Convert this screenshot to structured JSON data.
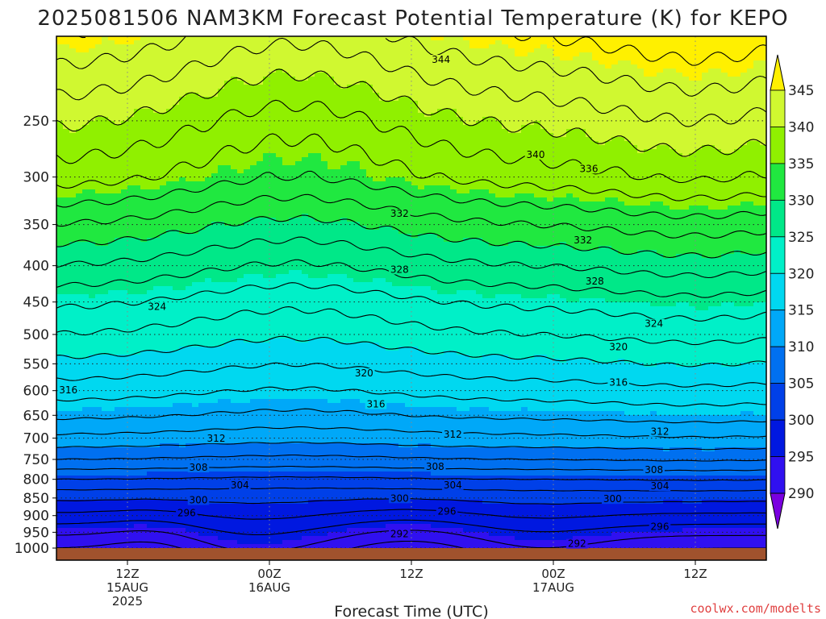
{
  "chart_data": {
    "type": "heatmap",
    "title": "2025081506 NAM3KM Forecast Potential Temperature (K) for KEPO",
    "xlabel": "Forecast Time (UTC)",
    "ylabel": "",
    "y_scale": "log",
    "y_axis_reversed": true,
    "ylim": [
      1040,
      190
    ],
    "y_ticks": [
      250,
      300,
      350,
      400,
      450,
      500,
      550,
      600,
      650,
      700,
      750,
      800,
      850,
      900,
      950,
      1000
    ],
    "x_ticks": [
      {
        "hour": 6,
        "label1": "12Z",
        "label2": "15AUG",
        "label3": "2025"
      },
      {
        "hour": 18,
        "label1": "00Z",
        "label2": "16AUG",
        "label3": ""
      },
      {
        "hour": 30,
        "label1": "12Z",
        "label2": "",
        "label3": ""
      },
      {
        "hour": 42,
        "label1": "00Z",
        "label2": "17AUG",
        "label3": ""
      },
      {
        "hour": 54,
        "label1": "12Z",
        "label2": "",
        "label3": ""
      }
    ],
    "xlim": [
      0,
      60
    ],
    "grid": true,
    "colorbar": {
      "levels": [
        290,
        295,
        300,
        305,
        310,
        315,
        320,
        325,
        330,
        335,
        340,
        345
      ],
      "colors": [
        "#7a00e0",
        "#3010f0",
        "#0018e0",
        "#0040e8",
        "#0070f0",
        "#00a8f8",
        "#00d8f0",
        "#00f0c8",
        "#00e888",
        "#20e840",
        "#90f000",
        "#d0f830",
        "#fff000"
      ]
    },
    "contour_levels": [
      288,
      290,
      292,
      294,
      296,
      298,
      300,
      302,
      304,
      306,
      308,
      310,
      312,
      314,
      316,
      318,
      320,
      322,
      324,
      326,
      328,
      330,
      332,
      334,
      336,
      338,
      340,
      342,
      344,
      346
    ],
    "contour_labels": [
      {
        "value": "344",
        "hour": 32.5,
        "p": 205
      },
      {
        "value": "340",
        "hour": 40.5,
        "p": 279
      },
      {
        "value": "336",
        "hour": 45,
        "p": 292
      },
      {
        "value": "332",
        "hour": 29,
        "p": 338
      },
      {
        "value": "332",
        "hour": 44.5,
        "p": 368
      },
      {
        "value": "328",
        "hour": 29,
        "p": 405
      },
      {
        "value": "328",
        "hour": 45.5,
        "p": 421
      },
      {
        "value": "324",
        "hour": 8.5,
        "p": 457
      },
      {
        "value": "324",
        "hour": 50.5,
        "p": 483
      },
      {
        "value": "320",
        "hour": 26,
        "p": 567
      },
      {
        "value": "320",
        "hour": 47.5,
        "p": 521
      },
      {
        "value": "316",
        "hour": 1,
        "p": 599
      },
      {
        "value": "316",
        "hour": 27,
        "p": 627
      },
      {
        "value": "316",
        "hour": 47.5,
        "p": 584
      },
      {
        "value": "312",
        "hour": 13.5,
        "p": 701
      },
      {
        "value": "312",
        "hour": 33.5,
        "p": 692
      },
      {
        "value": "312",
        "hour": 51,
        "p": 685
      },
      {
        "value": "308",
        "hour": 12,
        "p": 770
      },
      {
        "value": "308",
        "hour": 32,
        "p": 768
      },
      {
        "value": "308",
        "hour": 50.5,
        "p": 776
      },
      {
        "value": "304",
        "hour": 15.5,
        "p": 815
      },
      {
        "value": "304",
        "hour": 33.5,
        "p": 815
      },
      {
        "value": "304",
        "hour": 51,
        "p": 818
      },
      {
        "value": "300",
        "hour": 12,
        "p": 856
      },
      {
        "value": "300",
        "hour": 29,
        "p": 851
      },
      {
        "value": "300",
        "hour": 47,
        "p": 853
      },
      {
        "value": "296",
        "hour": 11,
        "p": 892
      },
      {
        "value": "296",
        "hour": 33,
        "p": 888
      },
      {
        "value": "296",
        "hour": 51,
        "p": 933
      },
      {
        "value": "292",
        "hour": 29,
        "p": 955
      },
      {
        "value": "292",
        "hour": 44,
        "p": 986
      }
    ]
  },
  "credit": "coolwx.com/modelts"
}
